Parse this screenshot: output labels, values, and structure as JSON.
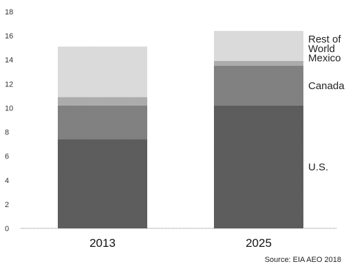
{
  "chart_data": {
    "type": "bar",
    "stacked": true,
    "categories": [
      "2013",
      "2025"
    ],
    "series": [
      {
        "name": "U.S.",
        "values": [
          7.4,
          10.2
        ],
        "color": "#3a3a3a"
      },
      {
        "name": "Canada",
        "values": [
          2.8,
          3.3
        ],
        "color": "#666666"
      },
      {
        "name": "Mexico",
        "values": [
          0.7,
          0.4
        ],
        "color": "#9a9a9a"
      },
      {
        "name": "Rest of World",
        "values": [
          4.2,
          2.5
        ],
        "color": "#d2d2d2"
      }
    ],
    "ylim": [
      0,
      18
    ],
    "yticks": [
      0,
      2,
      4,
      6,
      8,
      10,
      12,
      14,
      16,
      18
    ],
    "grid": false,
    "source": "Source: EIA AEO 2018"
  }
}
